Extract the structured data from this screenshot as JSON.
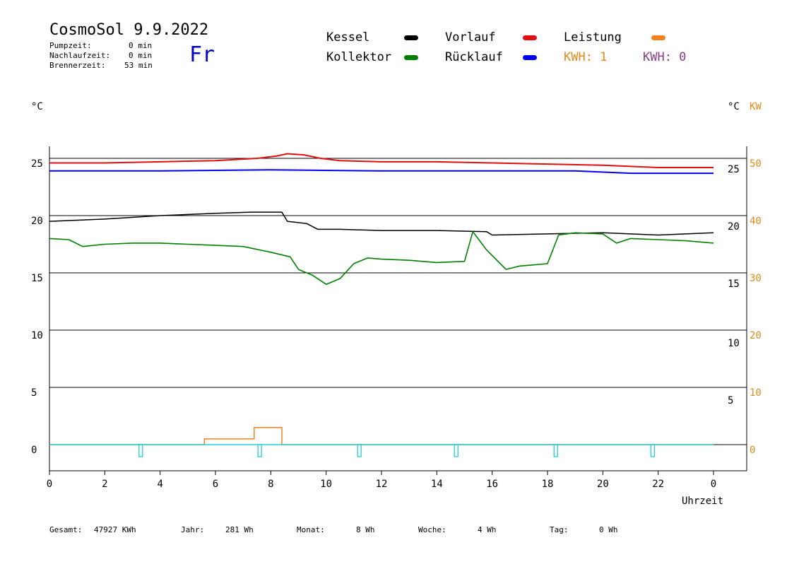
{
  "header": {
    "title": "CosmoSol 9.9.2022",
    "weekday": "Fr",
    "stats": [
      {
        "label": "Pumpzeit:",
        "value": "0 min"
      },
      {
        "label": "Nachlaufzeit:",
        "value": "0 min"
      },
      {
        "label": "Brennerzeit:",
        "value": "53 min"
      }
    ]
  },
  "legend": {
    "kessel": {
      "label": "Kessel",
      "color": "#000000"
    },
    "kollektor": {
      "label": "Kollektor",
      "color": "#008000"
    },
    "vorlauf": {
      "label": "Vorlauf",
      "color": "#e01010"
    },
    "ruecklauf": {
      "label": "Rücklauf",
      "color": "#0000ee"
    },
    "leistung": {
      "label": "Leistung",
      "color": "#f08020"
    },
    "kwh1": "KWH: 1",
    "kwh2": "KWH: 0"
  },
  "axes": {
    "left_unit": "°C",
    "right_unit_c": "°C",
    "right_unit_kw": "KW",
    "xlabel": "Uhrzeit"
  },
  "footer": {
    "gesamt_label": "Gesamt:",
    "gesamt_value": "47927 KWh",
    "jahr_label": "Jahr:",
    "jahr_value": "281 Wh",
    "monat_label": "Monat:",
    "monat_value": "8 Wh",
    "woche_label": "Woche:",
    "woche_value": "4 Wh",
    "tag_label": "Tag:",
    "tag_value": "0 Wh"
  },
  "chart_data": {
    "type": "line",
    "title": "CosmoSol 9.9.2022",
    "xlabel": "Uhrzeit",
    "ylabel": "°C",
    "xlim": [
      0,
      24
    ],
    "ylim": [
      -2,
      26
    ],
    "x_ticks": [
      "0",
      "2",
      "4",
      "6",
      "8",
      "10",
      "12",
      "14",
      "16",
      "18",
      "20",
      "22",
      "0"
    ],
    "y_ticks_left": [
      "25",
      "20",
      "15",
      "10",
      "5",
      "0"
    ],
    "y_ticks_right_c": [
      "25",
      "20",
      "15",
      "10",
      "5"
    ],
    "y_ticks_right_kw": [
      "50",
      "40",
      "30",
      "20",
      "10",
      "0"
    ],
    "grid": true,
    "series": [
      {
        "name": "Vorlauf",
        "color": "#e01010",
        "x": [
          0,
          2,
          4,
          6,
          7.5,
          8.2,
          8.6,
          9.2,
          9.8,
          10.5,
          12,
          14,
          16,
          18,
          20,
          22,
          24
        ],
        "y": [
          24.6,
          24.6,
          24.7,
          24.8,
          25.0,
          25.2,
          25.4,
          25.3,
          25.0,
          24.8,
          24.7,
          24.7,
          24.6,
          24.5,
          24.4,
          24.2,
          24.2
        ]
      },
      {
        "name": "Rücklauf",
        "color": "#0000ee",
        "x": [
          0,
          4,
          8,
          12,
          16,
          19,
          21,
          24
        ],
        "y": [
          23.9,
          23.9,
          24.0,
          23.9,
          23.9,
          23.9,
          23.7,
          23.7
        ]
      },
      {
        "name": "Kessel",
        "color": "#000000",
        "x": [
          0,
          2,
          4,
          6,
          7.3,
          8.4,
          8.6,
          9.3,
          9.7,
          10.5,
          12,
          14,
          15.8,
          16,
          18,
          20,
          22,
          24
        ],
        "y": [
          19.5,
          19.7,
          20.0,
          20.2,
          20.3,
          20.3,
          19.5,
          19.3,
          18.8,
          18.8,
          18.7,
          18.7,
          18.6,
          18.3,
          18.4,
          18.5,
          18.3,
          18.5
        ]
      },
      {
        "name": "Kollektor",
        "color": "#008000",
        "x": [
          0,
          0.7,
          1.2,
          2,
          3,
          4,
          5,
          6,
          7,
          8,
          8.7,
          9,
          9.5,
          10,
          10.5,
          11,
          11.5,
          12,
          13,
          14,
          15,
          15.3,
          15.8,
          16.5,
          17,
          18,
          18.4,
          19,
          20,
          20.5,
          21,
          22,
          23,
          24
        ],
        "y": [
          18.0,
          17.9,
          17.3,
          17.5,
          17.6,
          17.6,
          17.5,
          17.4,
          17.3,
          16.8,
          16.4,
          15.3,
          14.8,
          14.0,
          14.5,
          15.8,
          16.3,
          16.2,
          16.1,
          15.9,
          16.0,
          18.6,
          17.0,
          15.3,
          15.6,
          15.8,
          18.3,
          18.5,
          18.4,
          17.6,
          18.0,
          17.9,
          17.8,
          17.6
        ]
      },
      {
        "name": "Leistung",
        "color": "#f08020",
        "x": [
          0,
          5.6,
          5.6,
          7.4,
          7.4,
          8.4,
          8.4,
          24
        ],
        "y": [
          0,
          0,
          0.1,
          0.1,
          0.3,
          0.3,
          0,
          0
        ]
      }
    ],
    "pump_markers_x": [
      3.3,
      7.6,
      11.2,
      14.7,
      18.3,
      21.8
    ]
  }
}
